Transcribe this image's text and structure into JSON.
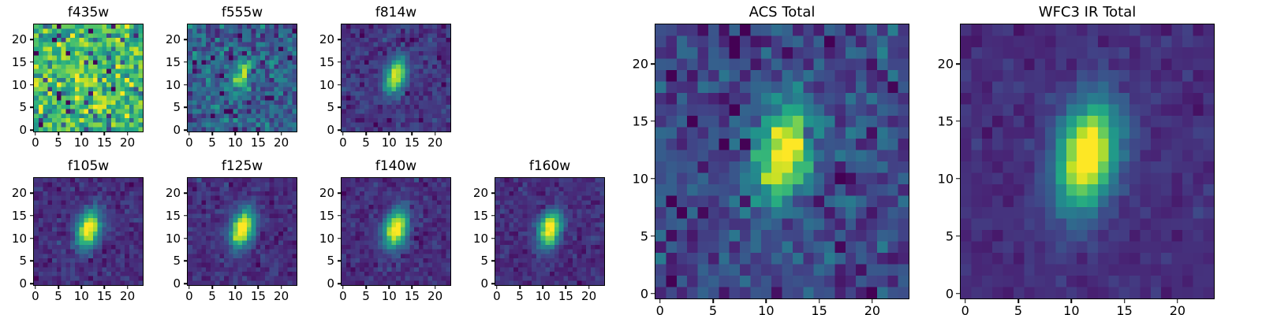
{
  "figure": {
    "background": "#ffffff",
    "text_color": "#000000",
    "colormap": "viridis",
    "colormap_stops": [
      [
        0.0,
        "#440154"
      ],
      [
        0.1,
        "#482475"
      ],
      [
        0.2,
        "#414487"
      ],
      [
        0.3,
        "#355f8d"
      ],
      [
        0.4,
        "#2a788e"
      ],
      [
        0.5,
        "#21918c"
      ],
      [
        0.6,
        "#22a884"
      ],
      [
        0.7,
        "#44bf70"
      ],
      [
        0.8,
        "#7ad151"
      ],
      [
        0.9,
        "#bddf26"
      ],
      [
        1.0,
        "#fde725"
      ]
    ]
  },
  "chart_data": [
    {
      "type": "heatmap",
      "title": "f435w",
      "grid_size": 24,
      "extent": [
        -0.5,
        23.5
      ],
      "x_ticks": [
        0,
        5,
        10,
        15,
        20
      ],
      "y_ticks": [
        0,
        5,
        10,
        15,
        20
      ],
      "colormap": "viridis",
      "render_model": {
        "seed": 101,
        "background": 0.68,
        "noise_sigma": 0.16,
        "amplitude": 0.12,
        "center": [
          11.5,
          12.0
        ],
        "sigma_major": 3.0,
        "sigma_minor": 1.6,
        "angle_deg": 75,
        "speckle_fraction": 0.06,
        "speckle_depth": 0.55
      }
    },
    {
      "type": "heatmap",
      "title": "f555w",
      "grid_size": 24,
      "extent": [
        -0.5,
        23.5
      ],
      "x_ticks": [
        0,
        5,
        10,
        15,
        20
      ],
      "y_ticks": [
        0,
        5,
        10,
        15,
        20
      ],
      "colormap": "viridis",
      "render_model": {
        "seed": 102,
        "background": 0.3,
        "noise_sigma": 0.11,
        "amplitude": 0.55,
        "center": [
          11.5,
          12.0
        ],
        "sigma_major": 2.6,
        "sigma_minor": 1.4,
        "angle_deg": 75,
        "speckle_fraction": 0.03,
        "speckle_depth": 0.35
      }
    },
    {
      "type": "heatmap",
      "title": "f814w",
      "grid_size": 24,
      "extent": [
        -0.5,
        23.5
      ],
      "x_ticks": [
        0,
        5,
        10,
        15,
        20
      ],
      "y_ticks": [
        0,
        5,
        10,
        15,
        20
      ],
      "colormap": "viridis",
      "render_model": {
        "seed": 103,
        "background": 0.16,
        "noise_sigma": 0.055,
        "amplitude": 0.82,
        "center": [
          11.5,
          12.0
        ],
        "sigma_major": 2.8,
        "sigma_minor": 1.5,
        "angle_deg": 75,
        "speckle_fraction": 0.01,
        "speckle_depth": 0.2
      }
    },
    {
      "type": "heatmap",
      "title": "f105w",
      "grid_size": 24,
      "extent": [
        -0.5,
        23.5
      ],
      "x_ticks": [
        0,
        5,
        10,
        15,
        20
      ],
      "y_ticks": [
        0,
        5,
        10,
        15,
        20
      ],
      "colormap": "viridis",
      "render_model": {
        "seed": 104,
        "background": 0.13,
        "noise_sigma": 0.05,
        "amplitude": 0.95,
        "center": [
          11.5,
          12.0
        ],
        "sigma_major": 3.0,
        "sigma_minor": 1.7,
        "angle_deg": 75,
        "speckle_fraction": 0.0,
        "speckle_depth": 0.0
      }
    },
    {
      "type": "heatmap",
      "title": "f125w",
      "grid_size": 24,
      "extent": [
        -0.5,
        23.5
      ],
      "x_ticks": [
        0,
        5,
        10,
        15,
        20
      ],
      "y_ticks": [
        0,
        5,
        10,
        15,
        20
      ],
      "colormap": "viridis",
      "render_model": {
        "seed": 105,
        "background": 0.13,
        "noise_sigma": 0.05,
        "amplitude": 0.97,
        "center": [
          11.5,
          12.0
        ],
        "sigma_major": 3.0,
        "sigma_minor": 1.7,
        "angle_deg": 75,
        "speckle_fraction": 0.0,
        "speckle_depth": 0.0
      }
    },
    {
      "type": "heatmap",
      "title": "f140w",
      "grid_size": 24,
      "extent": [
        -0.5,
        23.5
      ],
      "x_ticks": [
        0,
        5,
        10,
        15,
        20
      ],
      "y_ticks": [
        0,
        5,
        10,
        15,
        20
      ],
      "colormap": "viridis",
      "render_model": {
        "seed": 106,
        "background": 0.13,
        "noise_sigma": 0.045,
        "amplitude": 0.97,
        "center": [
          11.5,
          12.0
        ],
        "sigma_major": 3.0,
        "sigma_minor": 1.7,
        "angle_deg": 75,
        "speckle_fraction": 0.0,
        "speckle_depth": 0.0
      }
    },
    {
      "type": "heatmap",
      "title": "f160w",
      "grid_size": 24,
      "extent": [
        -0.5,
        23.5
      ],
      "x_ticks": [
        0,
        5,
        10,
        15,
        20
      ],
      "y_ticks": [
        0,
        5,
        10,
        15,
        20
      ],
      "colormap": "viridis",
      "render_model": {
        "seed": 107,
        "background": 0.13,
        "noise_sigma": 0.045,
        "amplitude": 0.97,
        "center": [
          11.5,
          12.0
        ],
        "sigma_major": 2.8,
        "sigma_minor": 1.6,
        "angle_deg": 75,
        "speckle_fraction": 0.0,
        "speckle_depth": 0.0
      }
    },
    {
      "type": "heatmap",
      "title": "ACS Total",
      "grid_size": 24,
      "extent": [
        -0.5,
        23.5
      ],
      "x_ticks": [
        0,
        5,
        10,
        15,
        20
      ],
      "y_ticks": [
        0,
        5,
        10,
        15,
        20
      ],
      "colormap": "viridis",
      "render_model": {
        "seed": 108,
        "background": 0.22,
        "noise_sigma": 0.1,
        "amplitude": 0.85,
        "center": [
          11.5,
          12.0
        ],
        "sigma_major": 3.0,
        "sigma_minor": 1.7,
        "angle_deg": 75,
        "speckle_fraction": 0.02,
        "speckle_depth": 0.25
      }
    },
    {
      "type": "heatmap",
      "title": "WFC3 IR Total",
      "grid_size": 24,
      "extent": [
        -0.5,
        23.5
      ],
      "x_ticks": [
        0,
        5,
        10,
        15,
        20
      ],
      "y_ticks": [
        0,
        5,
        10,
        15,
        20
      ],
      "colormap": "viridis",
      "render_model": {
        "seed": 109,
        "background": 0.13,
        "noise_sigma": 0.035,
        "amplitude": 1.0,
        "center": [
          11.5,
          12.0
        ],
        "sigma_major": 3.3,
        "sigma_minor": 1.9,
        "angle_deg": 75,
        "speckle_fraction": 0.0,
        "speckle_depth": 0.0
      }
    }
  ]
}
